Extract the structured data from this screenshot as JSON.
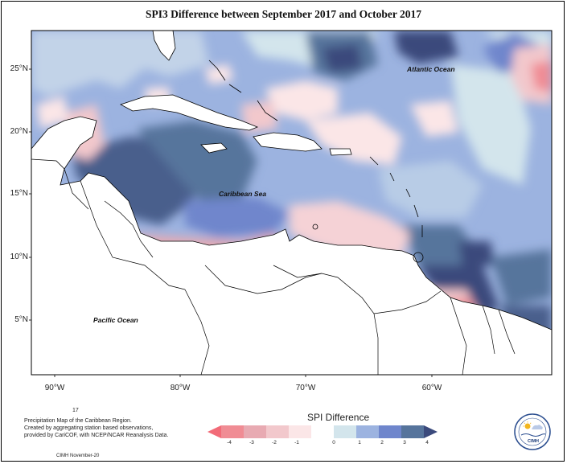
{
  "title": "SPI3 Difference between September 2017 and October 2017",
  "lat_labels": [
    "25°N",
    "20°N",
    "15°N",
    "10°N",
    "5°N"
  ],
  "lon_labels": [
    "90°W",
    "80°W",
    "70°W",
    "60°W"
  ],
  "oceans": {
    "atlantic": "Atlantic Ocean",
    "caribbean": "Caribbean Sea",
    "pacific": "Pacific Ocean"
  },
  "footer": {
    "code": "17",
    "line1": "Precipitation Map of the Caribbean Region.",
    "line2": "Created by aggregating station based observations,",
    "line3": "provided by CariCOF, with NCEP/NCAR Reanalysis Data.",
    "credit": "CIMH November-20"
  },
  "legend": {
    "title": "SPI Difference",
    "ticks": [
      "-4",
      "-3",
      "-2",
      "-1",
      "0",
      "1",
      "2",
      "3",
      "4"
    ],
    "colors": [
      "#f08c94",
      "#e8aab2",
      "#f2c8cc",
      "#fbe6e7",
      "#d3e5ec",
      "#9cb3e0",
      "#6f86cc",
      "#56749c",
      "#3b4a7c"
    ]
  },
  "logo_text": "CIMH"
}
